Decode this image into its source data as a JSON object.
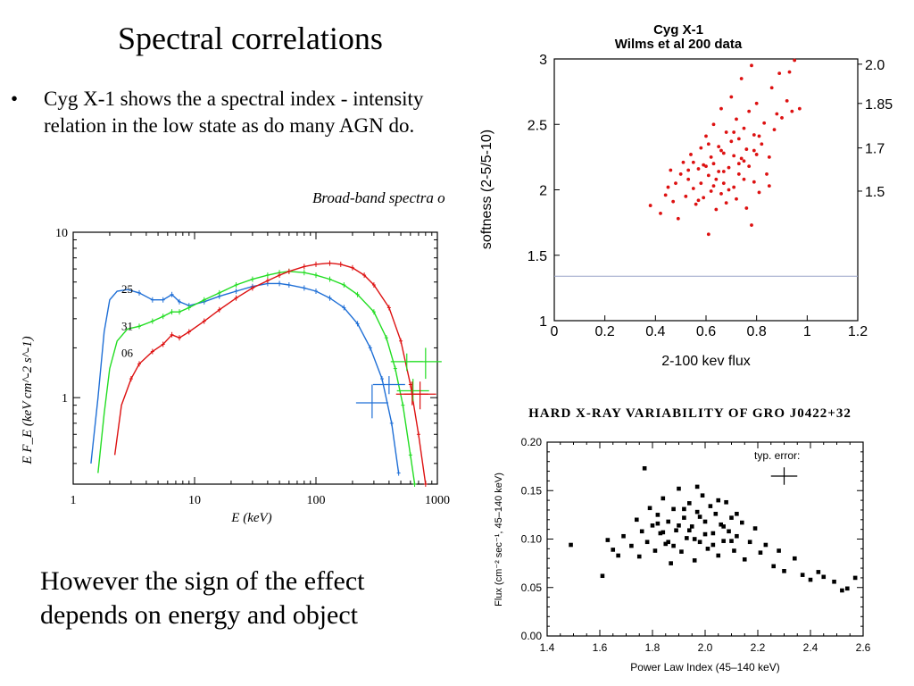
{
  "slide": {
    "title": "Spectral correlations",
    "bullet_marker": "•",
    "bullet_text": "Cyg X-1 shows the a spectral index - intensity relation in the low state as do many AGN do.",
    "cut_caption": "Broad-band spectra o",
    "footer": "However the sign of the effect depends on energy and object"
  },
  "chart_data": [
    {
      "type": "line",
      "title": "",
      "xlabel": "E (keV)",
      "ylabel": "E F_E (keV cm^-2 s^-1)",
      "xscale": "log",
      "yscale": "log",
      "xlim": [
        1,
        1000
      ],
      "ylim": [
        0.3,
        10
      ],
      "x_ticks": [
        "1",
        "10",
        "100",
        "1000"
      ],
      "y_ticks": [
        "10",
        "1"
      ],
      "series": [
        {
          "name": "25",
          "color": "#1f6fd6",
          "x": [
            1.4,
            1.6,
            1.8,
            2.0,
            2.3,
            2.8,
            3.5,
            4.5,
            5.5,
            6.5,
            7.5,
            9,
            12,
            16,
            22,
            30,
            40,
            50,
            60,
            80,
            100,
            130,
            170,
            220,
            280,
            350,
            420,
            480
          ],
          "y": [
            0.4,
            1.0,
            2.5,
            3.9,
            4.4,
            4.5,
            4.3,
            3.9,
            3.9,
            4.2,
            3.8,
            3.6,
            3.8,
            4.1,
            4.4,
            4.7,
            4.9,
            4.9,
            4.8,
            4.6,
            4.4,
            4.0,
            3.5,
            2.8,
            2.0,
            1.3,
            0.7,
            0.35
          ]
        },
        {
          "name": "31",
          "color": "#22dd22",
          "x": [
            1.6,
            1.8,
            2.0,
            2.3,
            2.8,
            3.5,
            4.5,
            5.5,
            6.5,
            7.5,
            9,
            12,
            16,
            22,
            30,
            40,
            50,
            60,
            80,
            100,
            130,
            170,
            220,
            300,
            380,
            450,
            520,
            600,
            650
          ],
          "y": [
            0.35,
            0.8,
            1.5,
            2.2,
            2.6,
            2.7,
            2.9,
            3.1,
            3.3,
            3.3,
            3.5,
            3.9,
            4.3,
            4.8,
            5.2,
            5.5,
            5.7,
            5.8,
            5.7,
            5.5,
            5.2,
            4.8,
            4.2,
            3.3,
            2.3,
            1.5,
            0.9,
            0.45,
            0.3
          ]
        },
        {
          "name": "06",
          "color": "#dd1111",
          "x": [
            2.2,
            2.5,
            3.0,
            3.5,
            4.5,
            5.5,
            6.5,
            7.5,
            9,
            12,
            16,
            22,
            30,
            40,
            50,
            60,
            80,
            100,
            130,
            160,
            200,
            250,
            300,
            400,
            500,
            600,
            700,
            800
          ],
          "y": [
            0.45,
            0.9,
            1.3,
            1.6,
            1.9,
            2.1,
            2.4,
            2.3,
            2.5,
            2.9,
            3.4,
            4.0,
            4.6,
            5.1,
            5.5,
            5.8,
            6.2,
            6.4,
            6.5,
            6.4,
            6.1,
            5.5,
            4.8,
            3.5,
            2.2,
            1.2,
            0.6,
            0.3
          ]
        }
      ],
      "error_points": [
        {
          "series": "25",
          "x": 290,
          "y": 0.93,
          "yerr": [
            0.75,
            1.2
          ]
        },
        {
          "series": "25",
          "x": 400,
          "y": 1.2,
          "yerr": [
            1.05,
            1.35
          ]
        },
        {
          "series": "31",
          "x": 560,
          "y": 1.65,
          "yerr": [
            1.45,
            1.85
          ]
        },
        {
          "series": "31",
          "x": 630,
          "y": 1.1,
          "yerr": [
            0.95,
            1.3
          ]
        },
        {
          "series": "31",
          "x": 800,
          "y": 1.65,
          "yerr": [
            1.3,
            2.0
          ]
        },
        {
          "series": "06",
          "x": 620,
          "y": 1.05,
          "yerr": [
            0.9,
            1.25
          ]
        },
        {
          "series": "06",
          "x": 720,
          "y": 1.05,
          "yerr": [
            0.85,
            1.25
          ]
        }
      ]
    },
    {
      "type": "scatter",
      "title": "Cyg X-1",
      "subtitle": "Wilms et al 200 data",
      "xlabel": "2-100 kev flux",
      "ylabel": "softness (2-5/5-10)",
      "xlim": [
        0,
        1.2
      ],
      "ylim": [
        1,
        3
      ],
      "x_ticks": [
        "0",
        "0.2",
        "0.4",
        "0.6",
        "0.8",
        "1",
        "1.2"
      ],
      "y_ticks": [
        "1",
        "1.5",
        "2",
        "2.5",
        "3"
      ],
      "right_axis_labels": [
        "2.0",
        "1.85",
        "1.7",
        "1.5"
      ],
      "right_axis_positions": [
        2.96,
        2.66,
        2.32,
        1.99
      ],
      "baseline_y": 1.34,
      "point_color": "#dd1111",
      "points": [
        [
          0.38,
          1.88
        ],
        [
          0.42,
          1.82
        ],
        [
          0.44,
          1.96
        ],
        [
          0.45,
          2.02
        ],
        [
          0.46,
          2.15
        ],
        [
          0.47,
          1.91
        ],
        [
          0.48,
          2.05
        ],
        [
          0.49,
          1.78
        ],
        [
          0.5,
          2.12
        ],
        [
          0.51,
          2.21
        ],
        [
          0.52,
          1.95
        ],
        [
          0.53,
          2.08
        ],
        [
          0.54,
          2.27
        ],
        [
          0.55,
          2.01
        ],
        [
          0.56,
          1.89
        ],
        [
          0.57,
          2.16
        ],
        [
          0.58,
          2.32
        ],
        [
          0.58,
          2.05
        ],
        [
          0.59,
          1.94
        ],
        [
          0.6,
          2.18
        ],
        [
          0.6,
          2.41
        ],
        [
          0.61,
          2.11
        ],
        [
          0.61,
          1.66
        ],
        [
          0.62,
          2.25
        ],
        [
          0.62,
          1.99
        ],
        [
          0.63,
          2.2
        ],
        [
          0.63,
          2.5
        ],
        [
          0.64,
          2.08
        ],
        [
          0.64,
          1.85
        ],
        [
          0.65,
          2.33
        ],
        [
          0.65,
          2.14
        ],
        [
          0.66,
          2.62
        ],
        [
          0.66,
          1.97
        ],
        [
          0.67,
          2.28
        ],
        [
          0.67,
          2.05
        ],
        [
          0.68,
          2.44
        ],
        [
          0.68,
          1.9
        ],
        [
          0.69,
          2.17
        ],
        [
          0.7,
          2.37
        ],
        [
          0.7,
          2.71
        ],
        [
          0.71,
          2.02
        ],
        [
          0.71,
          2.26
        ],
        [
          0.72,
          2.54
        ],
        [
          0.72,
          1.93
        ],
        [
          0.73,
          2.39
        ],
        [
          0.73,
          2.12
        ],
        [
          0.74,
          2.85
        ],
        [
          0.74,
          2.24
        ],
        [
          0.75,
          2.08
        ],
        [
          0.75,
          2.47
        ],
        [
          0.76,
          1.86
        ],
        [
          0.76,
          2.31
        ],
        [
          0.77,
          2.6
        ],
        [
          0.77,
          2.18
        ],
        [
          0.78,
          2.95
        ],
        [
          0.78,
          1.73
        ],
        [
          0.79,
          2.42
        ],
        [
          0.79,
          2.06
        ],
        [
          0.8,
          2.27
        ],
        [
          0.8,
          2.66
        ],
        [
          0.81,
          1.98
        ],
        [
          0.82,
          2.35
        ],
        [
          0.83,
          2.51
        ],
        [
          0.84,
          2.12
        ],
        [
          0.85,
          2.25
        ],
        [
          0.86,
          2.78
        ],
        [
          0.87,
          2.46
        ],
        [
          0.88,
          2.58
        ],
        [
          0.89,
          2.89
        ],
        [
          0.9,
          2.55
        ],
        [
          0.92,
          2.68
        ],
        [
          0.93,
          2.9
        ],
        [
          0.94,
          2.6
        ],
        [
          0.95,
          2.99
        ],
        [
          0.97,
          2.62
        ],
        [
          0.69,
          2.0
        ],
        [
          0.55,
          2.21
        ],
        [
          0.59,
          2.19
        ],
        [
          0.63,
          2.03
        ],
        [
          0.71,
          2.44
        ],
        [
          0.66,
          2.3
        ],
        [
          0.53,
          2.15
        ],
        [
          0.75,
          2.22
        ],
        [
          0.81,
          2.41
        ],
        [
          0.85,
          2.03
        ],
        [
          0.61,
          2.35
        ],
        [
          0.57,
          1.92
        ],
        [
          0.67,
          2.14
        ],
        [
          0.73,
          2.2
        ],
        [
          0.79,
          2.3
        ]
      ]
    },
    {
      "type": "scatter",
      "title": "HARD X-RAY VARIABILITY OF GRO J0422+32",
      "xlabel": "Power Law Index (45–140 keV)",
      "ylabel": "Flux (cm⁻² sec⁻¹, 45–140 keV)",
      "xlim": [
        1.4,
        2.6
      ],
      "ylim": [
        0.0,
        0.2
      ],
      "x_ticks": [
        "1.4",
        "1.6",
        "1.8",
        "2.0",
        "2.2",
        "2.4",
        "2.6"
      ],
      "y_ticks": [
        "0.00",
        "0.05",
        "0.10",
        "0.15",
        "0.20"
      ],
      "annotation": "typ. error:",
      "typical_error": {
        "x": 2.3,
        "y": 0.165,
        "xerr": 0.05,
        "yerr": 0.009
      },
      "point_color": "#000000",
      "points": [
        [
          1.49,
          0.094
        ],
        [
          1.61,
          0.062
        ],
        [
          1.63,
          0.099
        ],
        [
          1.65,
          0.089
        ],
        [
          1.67,
          0.083
        ],
        [
          1.69,
          0.103
        ],
        [
          1.72,
          0.093
        ],
        [
          1.74,
          0.12
        ],
        [
          1.75,
          0.082
        ],
        [
          1.76,
          0.108
        ],
        [
          1.77,
          0.173
        ],
        [
          1.78,
          0.097
        ],
        [
          1.79,
          0.132
        ],
        [
          1.8,
          0.114
        ],
        [
          1.81,
          0.088
        ],
        [
          1.82,
          0.125
        ],
        [
          1.83,
          0.106
        ],
        [
          1.84,
          0.142
        ],
        [
          1.85,
          0.095
        ],
        [
          1.86,
          0.118
        ],
        [
          1.87,
          0.075
        ],
        [
          1.88,
          0.131
        ],
        [
          1.89,
          0.109
        ],
        [
          1.9,
          0.152
        ],
        [
          1.91,
          0.087
        ],
        [
          1.92,
          0.122
        ],
        [
          1.93,
          0.101
        ],
        [
          1.94,
          0.137
        ],
        [
          1.95,
          0.113
        ],
        [
          1.96,
          0.078
        ],
        [
          1.97,
          0.128
        ],
        [
          1.98,
          0.097
        ],
        [
          1.99,
          0.145
        ],
        [
          2.0,
          0.118
        ],
        [
          2.01,
          0.09
        ],
        [
          2.02,
          0.134
        ],
        [
          2.03,
          0.106
        ],
        [
          2.04,
          0.126
        ],
        [
          2.05,
          0.083
        ],
        [
          2.06,
          0.115
        ],
        [
          2.07,
          0.098
        ],
        [
          2.08,
          0.138
        ],
        [
          2.09,
          0.108
        ],
        [
          2.1,
          0.122
        ],
        [
          2.11,
          0.088
        ],
        [
          2.12,
          0.103
        ],
        [
          2.14,
          0.117
        ],
        [
          2.15,
          0.079
        ],
        [
          2.17,
          0.097
        ],
        [
          2.19,
          0.111
        ],
        [
          2.21,
          0.086
        ],
        [
          2.23,
          0.094
        ],
        [
          2.26,
          0.072
        ],
        [
          2.28,
          0.088
        ],
        [
          2.3,
          0.067
        ],
        [
          2.34,
          0.08
        ],
        [
          2.37,
          0.063
        ],
        [
          2.4,
          0.058
        ],
        [
          2.43,
          0.066
        ],
        [
          2.45,
          0.061
        ],
        [
          2.49,
          0.056
        ],
        [
          2.52,
          0.047
        ],
        [
          2.54,
          0.049
        ],
        [
          2.57,
          0.06
        ],
        [
          1.86,
          0.097
        ],
        [
          1.94,
          0.109
        ],
        [
          1.98,
          0.123
        ],
        [
          2.03,
          0.094
        ],
        [
          1.9,
          0.114
        ],
        [
          1.96,
          0.1
        ],
        [
          2.07,
          0.113
        ],
        [
          1.84,
          0.107
        ],
        [
          2.0,
          0.105
        ],
        [
          1.92,
          0.131
        ],
        [
          1.88,
          0.093
        ],
        [
          2.12,
          0.126
        ],
        [
          2.05,
          0.14
        ],
        [
          1.82,
          0.116
        ],
        [
          1.97,
          0.154
        ],
        [
          2.1,
          0.098
        ]
      ]
    }
  ]
}
